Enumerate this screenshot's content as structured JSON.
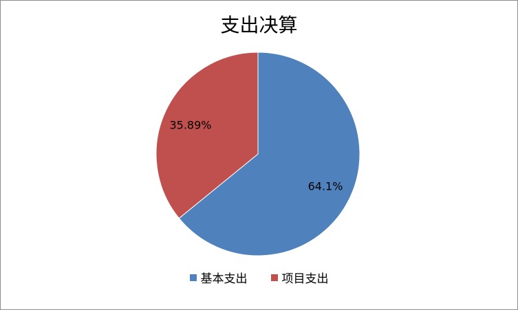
{
  "chart_data": {
    "type": "pie",
    "title": "支出决算",
    "categories": [
      "基本支出",
      "项目支出"
    ],
    "values": [
      64.1,
      35.89
    ],
    "data_labels": [
      "64.1%",
      "35.89%"
    ],
    "colors": [
      "#4f81bd",
      "#c0504d"
    ],
    "legend_position": "bottom"
  }
}
